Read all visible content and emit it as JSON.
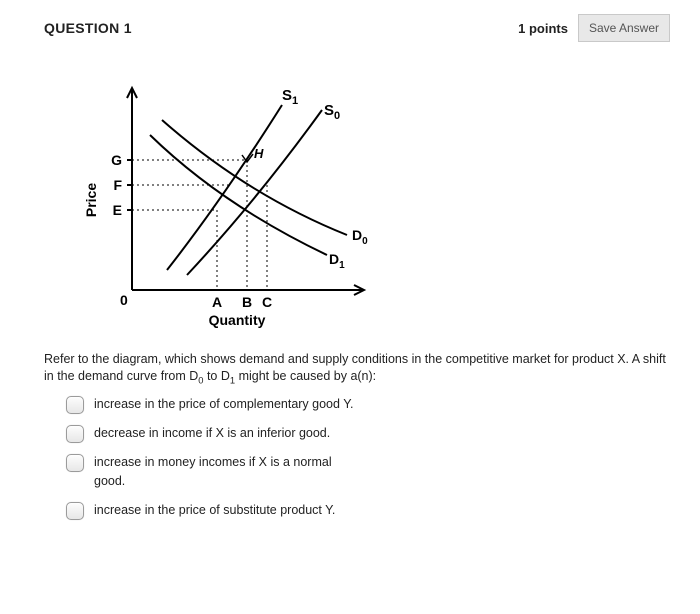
{
  "header": {
    "title": "QUESTION 1",
    "points_prefix": "1 points",
    "save_label": "Save Answer"
  },
  "diagram": {
    "y_axis_label": "Price",
    "x_axis_label": "Quantity",
    "origin_label": "0",
    "y_ticks": [
      "G",
      "F",
      "E"
    ],
    "x_ticks": [
      "A",
      "B",
      "C"
    ],
    "curve_labels": {
      "s1": "S",
      "s1_sub": "1",
      "s0": "S",
      "s0_sub": "0",
      "d0": "D",
      "d0_sub": "0",
      "d1": "D",
      "d1_sub": "1"
    },
    "point_H": "H",
    "colors": {
      "stroke": "#000000",
      "dashed": "#000000"
    }
  },
  "question_html": "Refer to the diagram, which shows demand and supply conditions in the competitive market for product X. A shift in the demand curve from D<sub>0</sub> to D<sub>1</sub> might be caused by a(n):",
  "options": [
    "increase in the price of complementary good Y.",
    "decrease in income if X is an inferior good.",
    "increase in money incomes if X is a normal good.",
    "increase in the price of substitute product Y."
  ]
}
